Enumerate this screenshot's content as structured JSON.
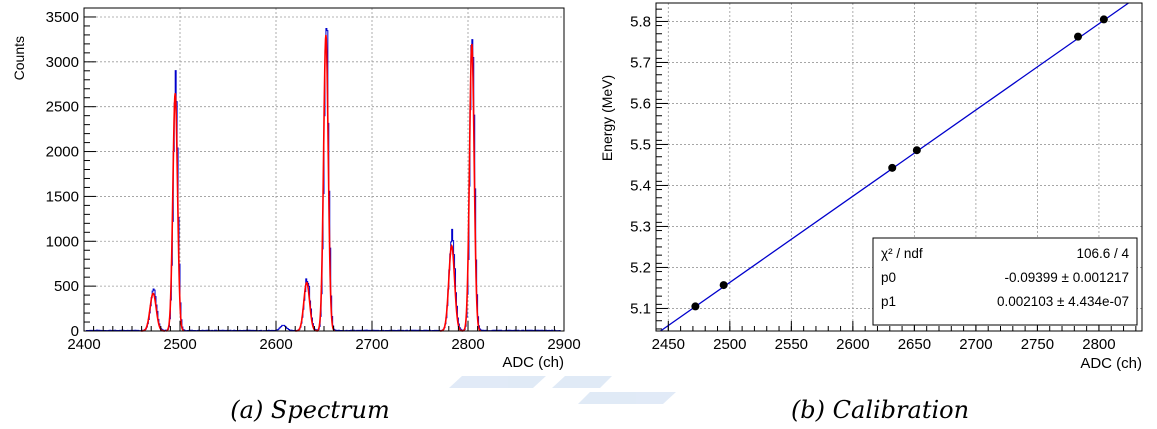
{
  "chart_data": [
    {
      "type": "line",
      "caption": "(a) Spectrum",
      "xlabel": "ADC (ch)",
      "ylabel": "Counts",
      "xlim": [
        2400,
        2900
      ],
      "ylim": [
        0,
        3600
      ],
      "xticks": [
        2400,
        2500,
        2600,
        2700,
        2800,
        2900
      ],
      "xtick_labels": [
        "2400",
        "2500",
        "2600",
        "2700",
        "2800",
        "2900"
      ],
      "yticks": [
        0,
        500,
        1000,
        1500,
        2000,
        2500,
        3000,
        3500
      ],
      "ytick_labels": [
        "0",
        "500",
        "1000",
        "1500",
        "2000",
        "2500",
        "3000",
        "3500"
      ],
      "grid": true,
      "series": [
        {
          "role": "histogram",
          "color": "#0000cc",
          "peaks": [
            {
              "x": 2472,
              "height": 450,
              "sigma": 3.2
            },
            {
              "x": 2495,
              "height": 2800,
              "sigma": 2.4
            },
            {
              "x": 2607,
              "height": 60,
              "sigma": 3.0
            },
            {
              "x": 2632,
              "height": 580,
              "sigma": 3.0
            },
            {
              "x": 2652,
              "height": 3470,
              "sigma": 2.4
            },
            {
              "x": 2783,
              "height": 1080,
              "sigma": 3.0
            },
            {
              "x": 2804,
              "height": 3350,
              "sigma": 2.4
            }
          ]
        },
        {
          "role": "fit",
          "color": "#ff0000",
          "peaks": [
            {
              "x": 2472,
              "height": 420,
              "sigma": 3.2
            },
            {
              "x": 2495,
              "height": 2650,
              "sigma": 2.4
            },
            {
              "x": 2632,
              "height": 540,
              "sigma": 3.0
            },
            {
              "x": 2652,
              "height": 3300,
              "sigma": 2.4
            },
            {
              "x": 2783,
              "height": 950,
              "sigma": 3.0
            },
            {
              "x": 2804,
              "height": 3200,
              "sigma": 2.4
            }
          ]
        }
      ]
    },
    {
      "type": "scatter",
      "caption": "(b) Calibration",
      "xlabel": "ADC (ch)",
      "ylabel": "Energy (MeV)",
      "xlim": [
        2440,
        2835
      ],
      "ylim": [
        5.045,
        5.845
      ],
      "xticks": [
        2450,
        2500,
        2550,
        2600,
        2650,
        2700,
        2750,
        2800
      ],
      "xtick_labels": [
        "2450",
        "2500",
        "2550",
        "2600",
        "2650",
        "2700",
        "2750",
        "2800"
      ],
      "yticks": [
        5.1,
        5.2,
        5.3,
        5.4,
        5.5,
        5.6,
        5.7,
        5.8
      ],
      "ytick_labels": [
        "5.1",
        "5.2",
        "5.3",
        "5.4",
        "5.5",
        "5.6",
        "5.7",
        "5.8"
      ],
      "grid": true,
      "points": [
        {
          "x": 2472,
          "y": 5.105
        },
        {
          "x": 2495,
          "y": 5.157
        },
        {
          "x": 2632,
          "y": 5.443
        },
        {
          "x": 2652,
          "y": 5.486
        },
        {
          "x": 2783,
          "y": 5.763
        },
        {
          "x": 2804,
          "y": 5.805
        }
      ],
      "fit": {
        "p0": -0.09399,
        "p1": 0.002103,
        "color": "#0000cc"
      },
      "stats_box": {
        "placement": "bottom-right",
        "rows": [
          {
            "label": "χ² / ndf",
            "value": "106.6 / 4"
          },
          {
            "label": "p0",
            "value": "-0.09399 ± 0.001217"
          },
          {
            "label": "p1",
            "value": "0.002103 ± 4.434e-07"
          }
        ]
      }
    }
  ]
}
